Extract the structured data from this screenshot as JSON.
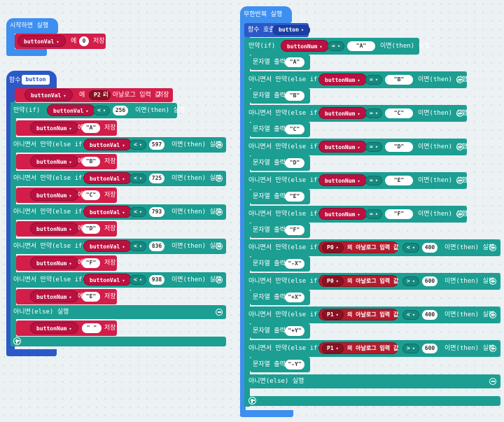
{
  "onstart": {
    "hat_label": "시작하면 실행",
    "set_var": "buttonVal",
    "set_to": "에",
    "set_value": "0",
    "set_store": "저장"
  },
  "fn_def": {
    "keyword": "함수",
    "name": "button",
    "assign_var": "buttonVal",
    "assign_to": "에",
    "pin": "P2",
    "analog_label": "의 아날로그 입력 값",
    "store": "저장",
    "if_label": "만약(if)",
    "elseif_label": "아니면서 만약(else if)",
    "else_label": "아니면(else) 실행",
    "then_label": "이면(then) 실행",
    "cmp_var": "buttonVal",
    "op": "<",
    "num_var": "buttonNum",
    "branches": [
      {
        "threshold": "256",
        "value": "A"
      },
      {
        "threshold": "597",
        "value": "B"
      },
      {
        "threshold": "725",
        "value": "C"
      },
      {
        "threshold": "793",
        "value": "D"
      },
      {
        "threshold": "836",
        "value": "F"
      },
      {
        "threshold": "938",
        "value": "E"
      }
    ],
    "else_value": " "
  },
  "forever": {
    "hat_label": "무한반복 실행",
    "call_label": "함수 호출",
    "call_name": "button",
    "if_label": "만약(if)",
    "elseif_label": "아니면서 만약(else if)",
    "else_label": "아니면(else) 실행",
    "then_label": "이면(then) 실행",
    "show_label": "문자열 출력",
    "num_var": "buttonNum",
    "eq": "=",
    "analog_label": "의 아날로그 입력 값",
    "branches": [
      {
        "kind": "eq",
        "value": "A",
        "show": "A"
      },
      {
        "kind": "eq",
        "value": "B",
        "show": "B"
      },
      {
        "kind": "eq",
        "value": "C",
        "show": "C"
      },
      {
        "kind": "eq",
        "value": "D",
        "show": "D"
      },
      {
        "kind": "eq",
        "value": "E",
        "show": "E"
      },
      {
        "kind": "eq",
        "value": "F",
        "show": "F"
      },
      {
        "kind": "pin",
        "pin": "P0",
        "op": "<",
        "threshold": "400",
        "show": "-X"
      },
      {
        "kind": "pin",
        "pin": "P0",
        "op": ">",
        "threshold": "600",
        "show": "+X"
      },
      {
        "kind": "pin",
        "pin": "P1",
        "op": "<",
        "threshold": "400",
        "show": "+Y"
      },
      {
        "kind": "pin",
        "pin": "P1",
        "op": ">",
        "threshold": "600",
        "show": "-Y"
      }
    ]
  },
  "colors": {
    "background": "#ecf1f4",
    "event": "#3d8ff0",
    "function": "#2c59c8",
    "logic": "#1c9e92",
    "variable": "#d31e4a"
  }
}
